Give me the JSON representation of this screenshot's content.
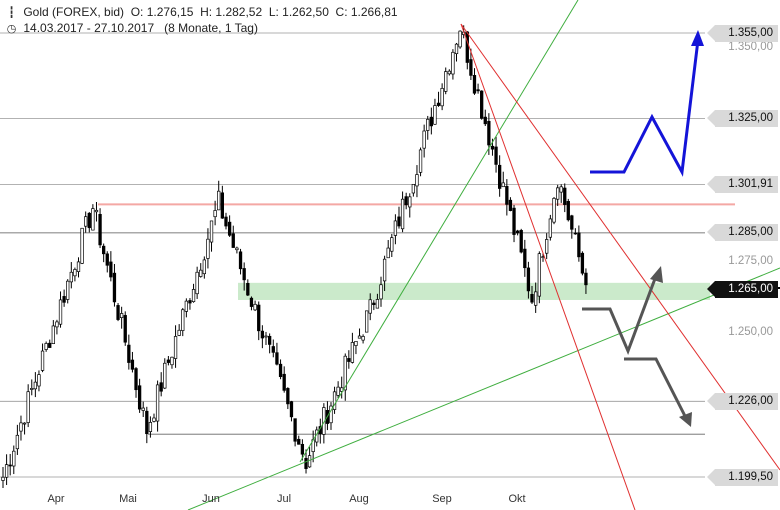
{
  "header": {
    "title": "Gold (FOREX, bid)",
    "ohlc": "O: 1.276,15  H: 1.282,52  L: 1.262,50  C: 1.266,81",
    "range": "14.03.2017 - 27.10.2017",
    "period": "(8 Monate, 1 Tag)",
    "icons": [
      "candlestick-icon",
      "clock-icon"
    ]
  },
  "chart_data": {
    "type": "candlestick",
    "instrument": "Gold (FOREX, bid)",
    "period": "14.03.2017 - 27.10.2017",
    "interval": "1 Tag",
    "last": {
      "open": 1276.15,
      "high": 1282.52,
      "low": 1262.5,
      "close": 1266.81
    },
    "ylim": [
      1197,
      1358
    ],
    "y_ticks": [
      "1.350,00",
      "1.275,00",
      "1.250,00"
    ],
    "x_labels": [
      "Apr",
      "Mai",
      "Jun",
      "Jul",
      "Aug",
      "Sep",
      "Okt"
    ],
    "price_levels": [
      {
        "label": "1.355,00",
        "value": 1355.0,
        "style": "box"
      },
      {
        "label": "1.325,00",
        "value": 1325.0,
        "style": "box"
      },
      {
        "label": "1.301,91",
        "value": 1301.91,
        "style": "box"
      },
      {
        "label": "1.285,00",
        "value": 1285.0,
        "style": "box"
      },
      {
        "label": "1.265,00",
        "value": 1265.0,
        "style": "dark"
      },
      {
        "label": "1.226,00",
        "value": 1226.0,
        "style": "box"
      },
      {
        "label": "1.199,50",
        "value": 1199.5,
        "style": "box"
      }
    ],
    "resistance_line": 1295.0,
    "support_zone": [
      1261.5,
      1267.5
    ],
    "series_keypoints": [
      {
        "date": "2017-03-14",
        "close": 1199.5
      },
      {
        "date": "2017-04-18",
        "close": 1294.0
      },
      {
        "date": "2017-05-09",
        "close": 1216.0
      },
      {
        "date": "2017-06-06",
        "close": 1295.5
      },
      {
        "date": "2017-07-10",
        "close": 1205.0
      },
      {
        "date": "2017-08-04",
        "close": 1258.0
      },
      {
        "date": "2017-09-08",
        "close": 1357.5
      },
      {
        "date": "2017-10-06",
        "close": 1262.0
      },
      {
        "date": "2017-10-16",
        "close": 1305.0
      },
      {
        "date": "2017-10-27",
        "close": 1266.81
      }
    ],
    "colors": {
      "candles": "#000000",
      "resistance": "#f4a8a4",
      "support_zone": "#a8dca8",
      "trend_up": "#3fae3f",
      "trend_down": "#e03030",
      "scenario_up": "#1414d8",
      "scenario_alt": "#555555"
    }
  }
}
